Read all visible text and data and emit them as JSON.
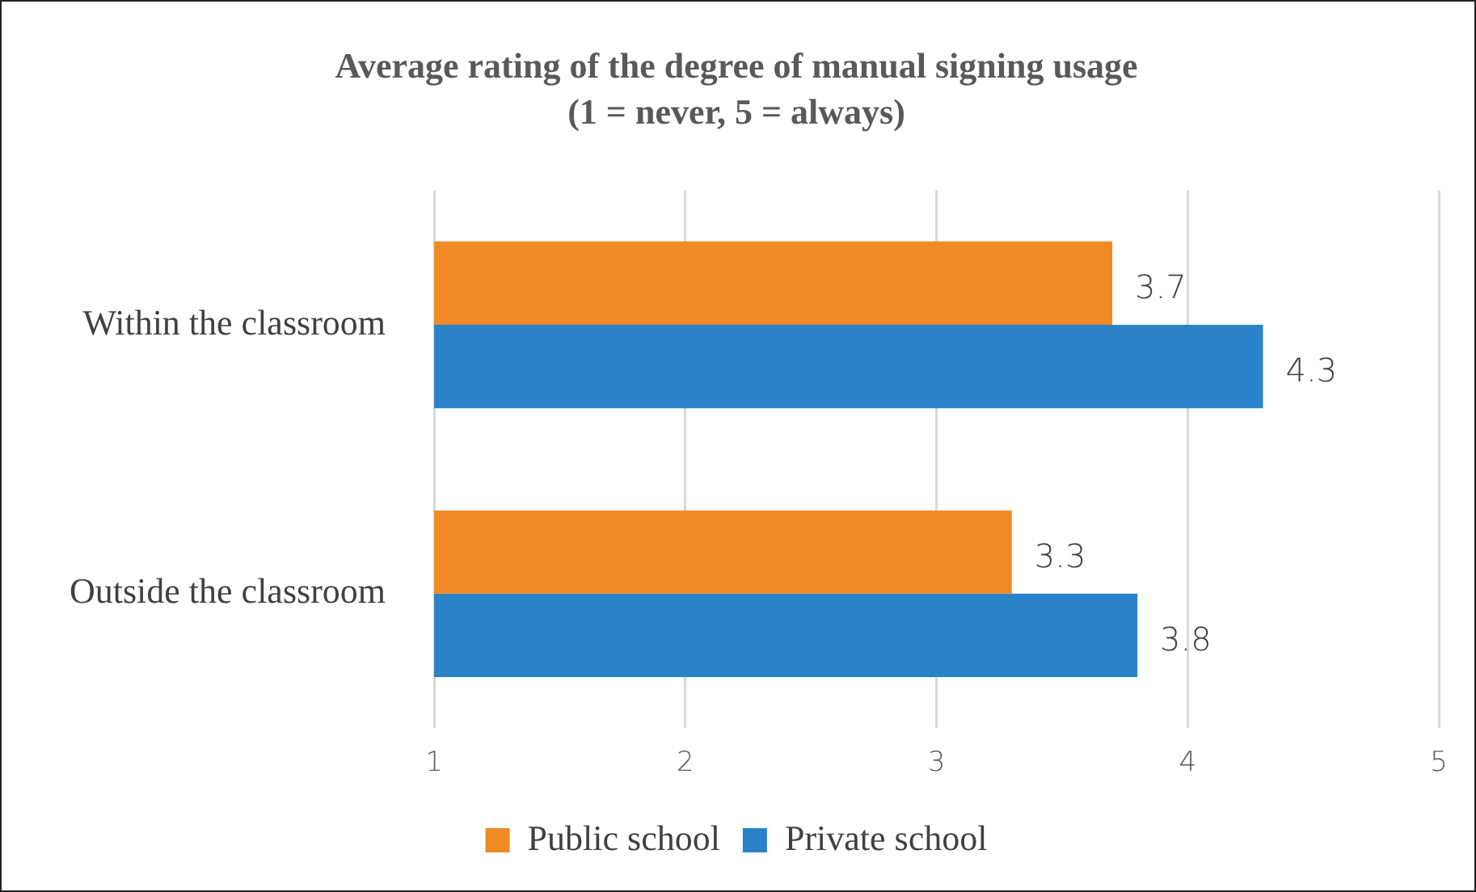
{
  "chart_data": {
    "type": "bar",
    "orientation": "horizontal",
    "title": "Average rating of the degree of manual signing usage",
    "subtitle": "(1 = never, 5 = always)",
    "categories": [
      "Within the classroom",
      "Outside the classroom"
    ],
    "series": [
      {
        "name": "Public school",
        "color": "#f08a24",
        "values": [
          3.7,
          3.3
        ]
      },
      {
        "name": "Private school",
        "color": "#2a82c8",
        "values": [
          4.3,
          3.8
        ]
      }
    ],
    "xlim": [
      1,
      5
    ],
    "xticks": [
      1,
      2,
      3,
      4,
      5
    ],
    "grid": "x",
    "legend": "bottom",
    "data_labels": true
  }
}
